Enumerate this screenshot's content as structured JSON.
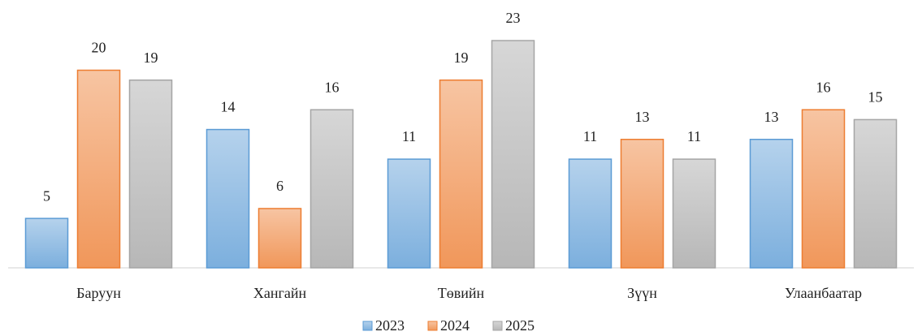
{
  "chart_data": {
    "type": "bar",
    "categories": [
      "Баруун",
      "Хангайн",
      "Төвийн",
      "Зүүн",
      "Улаанбаатар"
    ],
    "series": [
      {
        "name": "2023",
        "color": "#5b9bd5",
        "values": [
          5,
          14,
          11,
          11,
          13
        ]
      },
      {
        "name": "2024",
        "color": "#ed7d31",
        "values": [
          20,
          6,
          19,
          13,
          16
        ]
      },
      {
        "name": "2025",
        "color": "#a5a5a5",
        "values": [
          19,
          16,
          23,
          11,
          15
        ]
      }
    ]
  }
}
